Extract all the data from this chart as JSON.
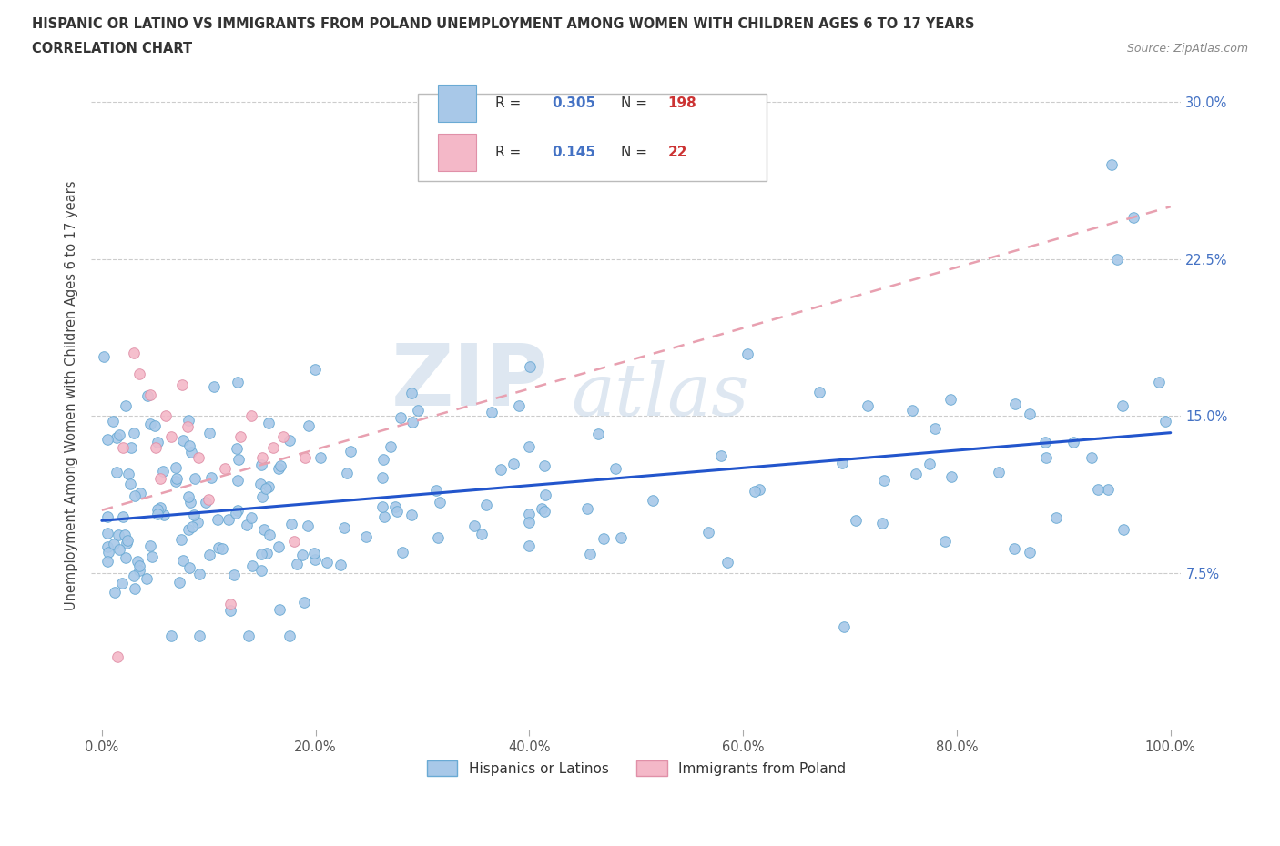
{
  "title_line1": "HISPANIC OR LATINO VS IMMIGRANTS FROM POLAND UNEMPLOYMENT AMONG WOMEN WITH CHILDREN AGES 6 TO 17 YEARS",
  "title_line2": "CORRELATION CHART",
  "source_text": "Source: ZipAtlas.com",
  "watermark_zip": "ZIP",
  "watermark_atlas": "atlas",
  "ylabel": "Unemployment Among Women with Children Ages 6 to 17 years",
  "xtick_labels": [
    "0.0%",
    "20.0%",
    "40.0%",
    "60.0%",
    "80.0%",
    "100.0%"
  ],
  "xtick_vals": [
    0,
    20,
    40,
    60,
    80,
    100
  ],
  "ytick_labels": [
    "7.5%",
    "15.0%",
    "22.5%",
    "30.0%"
  ],
  "ytick_vals": [
    7.5,
    15.0,
    22.5,
    30.0
  ],
  "blue_color": "#a8c8e8",
  "blue_edge": "#6aaad4",
  "pink_color": "#f4b8c8",
  "pink_edge": "#e090a8",
  "trend_blue": "#2255cc",
  "trend_pink": "#e8a0b0",
  "legend_R1": "0.305",
  "legend_N1": "198",
  "legend_R2": "0.145",
  "legend_N2": "22",
  "legend_color_val": "#4472c4",
  "legend_color_N": "#cc3333",
  "tick_color": "#4472c4",
  "figsize": [
    14.06,
    9.3
  ],
  "dpi": 100
}
